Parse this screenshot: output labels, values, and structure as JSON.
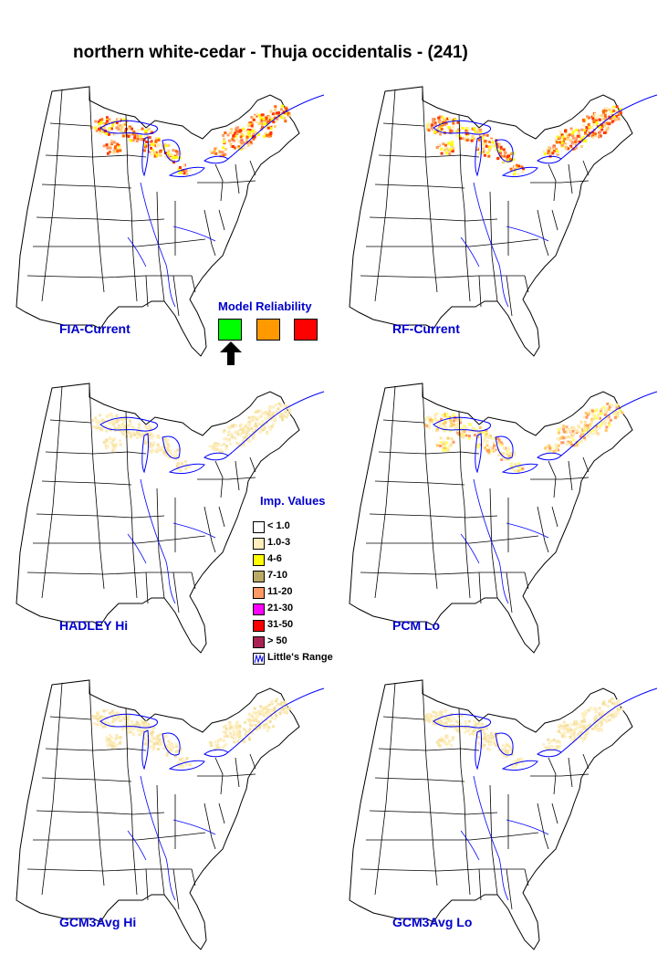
{
  "title": "northern white-cedar - Thuja occidentalis - (241)",
  "maps": [
    {
      "label": "FIA-Current",
      "intensity": "high"
    },
    {
      "label": "RF-Current",
      "intensity": "high"
    },
    {
      "label": "HADLEY Hi",
      "intensity": "low"
    },
    {
      "label": "PCM Lo",
      "intensity": "medium"
    },
    {
      "label": "GCM3Avg Hi",
      "intensity": "low"
    },
    {
      "label": "GCM3Avg Lo",
      "intensity": "low"
    }
  ],
  "model_reliability": {
    "title": "Model Reliability",
    "levels": [
      {
        "name": "high",
        "color": "#00ff00"
      },
      {
        "name": "medium",
        "color": "#ff9900"
      },
      {
        "name": "low",
        "color": "#ff0000"
      }
    ],
    "selected": "high"
  },
  "legend": {
    "title": "Imp. Values",
    "items": [
      {
        "label": "< 1.0",
        "color": "#ffffff"
      },
      {
        "label": "1.0-3",
        "color": "#ffeebb"
      },
      {
        "label": "4-6",
        "color": "#ffff00"
      },
      {
        "label": "7-10",
        "color": "#bbaa66"
      },
      {
        "label": "11-20",
        "color": "#ff9966"
      },
      {
        "label": "21-30",
        "color": "#ff00ff"
      },
      {
        "label": "31-50",
        "color": "#ff0000"
      },
      {
        "label": "> 50",
        "color": "#aa2255"
      },
      {
        "label": "Little's Range",
        "color": "range-icon"
      }
    ]
  },
  "colors": {
    "label_blue": "#0000cc",
    "water_blue": "#0000ff",
    "state_line": "#000000"
  }
}
